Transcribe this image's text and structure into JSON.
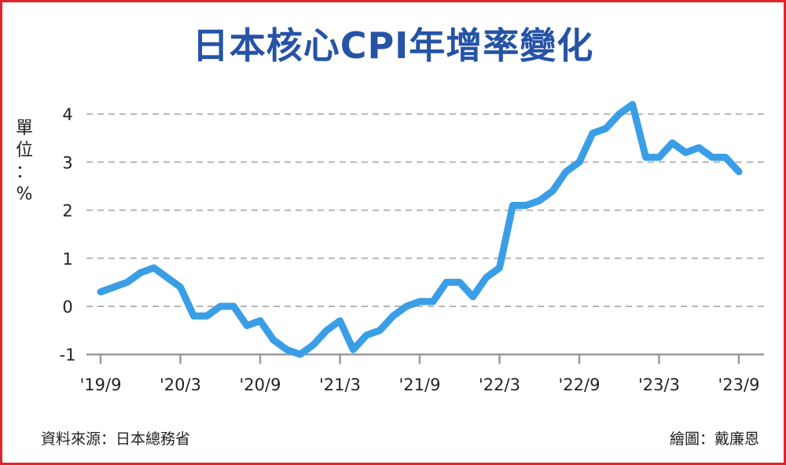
{
  "chart_data": {
    "type": "line",
    "title": "日本核心CPI年增率變化",
    "ylabel_chars": [
      "單",
      "位",
      "：",
      "%"
    ],
    "ylim": [
      -1,
      4
    ],
    "yticks": [
      "4",
      "3",
      "2",
      "1",
      "0",
      "-1"
    ],
    "x_tick_labels": [
      "'19/9",
      "'20/3",
      "'20/9",
      "'21/3",
      "'21/9",
      "'22/3",
      "'22/9",
      "'23/3",
      "'23/9"
    ],
    "grid": "horizontal dashed",
    "series": [
      {
        "color": "#3a9ee6",
        "x": [
          "2019-09",
          "2019-10",
          "2019-11",
          "2019-12",
          "2020-01",
          "2020-02",
          "2020-03",
          "2020-04",
          "2020-05",
          "2020-06",
          "2020-07",
          "2020-08",
          "2020-09",
          "2020-10",
          "2020-11",
          "2020-12",
          "2021-01",
          "2021-02",
          "2021-03",
          "2021-04",
          "2021-05",
          "2021-06",
          "2021-07",
          "2021-08",
          "2021-09",
          "2021-10",
          "2021-11",
          "2021-12",
          "2022-01",
          "2022-02",
          "2022-03",
          "2022-04",
          "2022-05",
          "2022-06",
          "2022-07",
          "2022-08",
          "2022-09",
          "2022-10",
          "2022-11",
          "2022-12",
          "2023-01",
          "2023-02",
          "2023-03",
          "2023-04",
          "2023-05",
          "2023-06",
          "2023-07",
          "2023-08",
          "2023-09"
        ],
        "values": [
          0.3,
          0.4,
          0.5,
          0.7,
          0.8,
          0.6,
          0.4,
          -0.2,
          -0.2,
          0.0,
          0.0,
          -0.4,
          -0.3,
          -0.7,
          -0.9,
          -1.0,
          -0.8,
          -0.5,
          -0.3,
          -0.9,
          -0.6,
          -0.5,
          -0.2,
          0.0,
          0.1,
          0.1,
          0.5,
          0.5,
          0.2,
          0.6,
          0.8,
          2.1,
          2.1,
          2.2,
          2.4,
          2.8,
          3.0,
          3.6,
          3.7,
          4.0,
          4.2,
          3.1,
          3.1,
          3.4,
          3.2,
          3.3,
          3.1,
          3.1,
          2.8
        ]
      }
    ]
  },
  "footer": {
    "source": "資料來源：日本總務省",
    "credit": "繪圖：戴廉恩"
  }
}
